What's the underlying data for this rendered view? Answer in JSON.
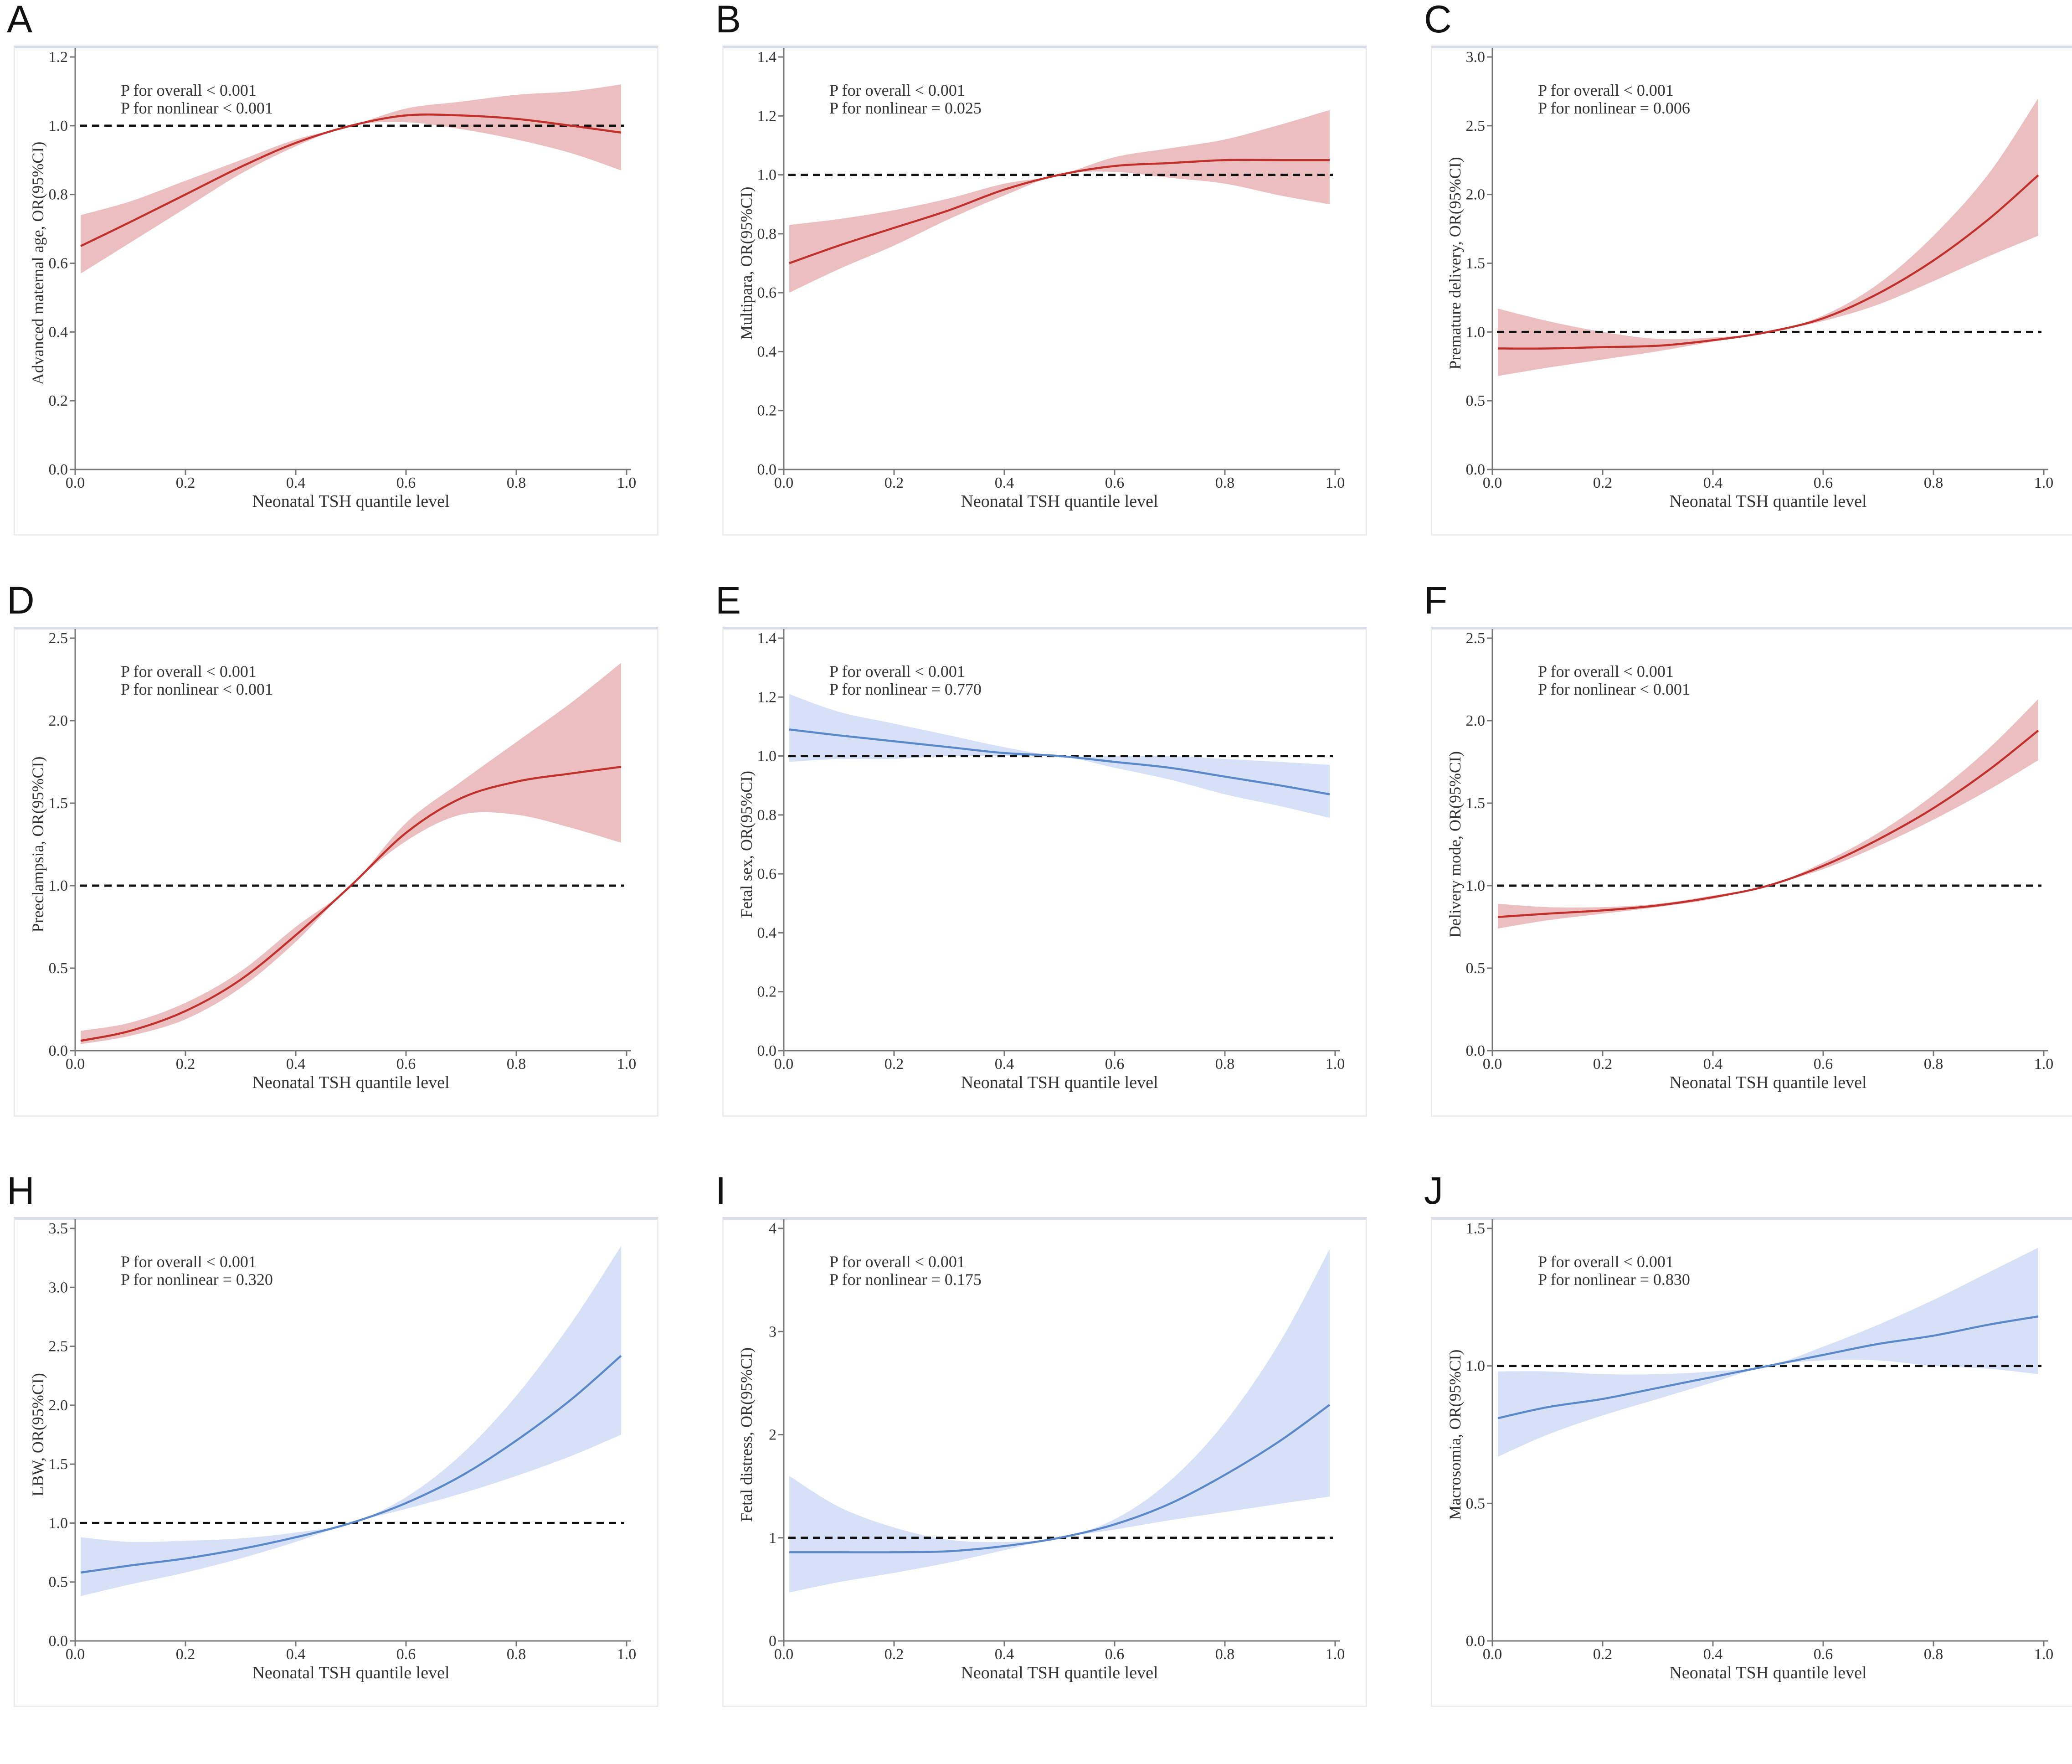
{
  "figure": {
    "colors": {
      "red_line": "#c0302c",
      "red_band": "#e8b4b5",
      "blue_line": "#5b88c8",
      "blue_band": "#cfdcf6",
      "ref_line": "#111111",
      "axis": "#777777"
    }
  },
  "chart_data": [
    {
      "panel": "A",
      "type": "line",
      "theme": "red",
      "xlabel": "Neonatal TSH quantile level",
      "ylabel": "Advanced maternal age, OR(95%CI)",
      "annotations": [
        "P for overall < 0.001",
        "P for nonlinear < 0.001"
      ],
      "xlim": [
        0,
        1
      ],
      "ylim": [
        0,
        1.2
      ],
      "xticks": [
        "0.0",
        "0.2",
        "0.4",
        "0.6",
        "0.8",
        "1.0"
      ],
      "yticks": [
        "0.0",
        "0.2",
        "0.4",
        "0.6",
        "0.8",
        "1.0",
        "1.2"
      ],
      "reference": 1.0,
      "x": [
        0.01,
        0.1,
        0.2,
        0.3,
        0.4,
        0.5,
        0.6,
        0.7,
        0.8,
        0.9,
        0.99
      ],
      "y": [
        0.65,
        0.72,
        0.8,
        0.88,
        0.95,
        1.0,
        1.03,
        1.03,
        1.02,
        1.0,
        0.98
      ],
      "lower": [
        0.57,
        0.66,
        0.76,
        0.86,
        0.94,
        1.0,
        1.01,
        0.99,
        0.96,
        0.92,
        0.87
      ],
      "upper": [
        0.74,
        0.78,
        0.84,
        0.9,
        0.96,
        1.0,
        1.05,
        1.07,
        1.09,
        1.1,
        1.12
      ]
    },
    {
      "panel": "B",
      "type": "line",
      "theme": "red",
      "xlabel": "Neonatal TSH quantile level",
      "ylabel": "Multipara, OR(95%CI)",
      "annotations": [
        "P for overall < 0.001",
        "P for nonlinear = 0.025"
      ],
      "xlim": [
        0,
        1
      ],
      "ylim": [
        0,
        1.4
      ],
      "xticks": [
        "0.0",
        "0.2",
        "0.4",
        "0.6",
        "0.8",
        "1.0"
      ],
      "yticks": [
        "0.0",
        "0.2",
        "0.4",
        "0.6",
        "0.8",
        "1.0",
        "1.2",
        "1.4"
      ],
      "reference": 1.0,
      "x": [
        0.01,
        0.1,
        0.2,
        0.3,
        0.4,
        0.5,
        0.6,
        0.7,
        0.8,
        0.9,
        0.99
      ],
      "y": [
        0.7,
        0.76,
        0.82,
        0.88,
        0.95,
        1.0,
        1.03,
        1.04,
        1.05,
        1.05,
        1.05
      ],
      "lower": [
        0.6,
        0.68,
        0.76,
        0.85,
        0.93,
        1.0,
        1.01,
        0.99,
        0.97,
        0.93,
        0.9
      ],
      "upper": [
        0.83,
        0.85,
        0.88,
        0.92,
        0.97,
        1.0,
        1.06,
        1.09,
        1.12,
        1.17,
        1.22
      ]
    },
    {
      "panel": "C",
      "type": "line",
      "theme": "red",
      "xlabel": "Neonatal TSH quantile level",
      "ylabel": "Premature delivery, OR(95%CI)",
      "annotations": [
        "P for overall < 0.001",
        "P for nonlinear = 0.006"
      ],
      "xlim": [
        0,
        1
      ],
      "ylim": [
        0,
        3.0
      ],
      "xticks": [
        "0.0",
        "0.2",
        "0.4",
        "0.6",
        "0.8",
        "1.0"
      ],
      "yticks": [
        "0.0",
        "0.5",
        "1.0",
        "1.5",
        "2.0",
        "2.5",
        "3.0"
      ],
      "reference": 1.0,
      "x": [
        0.01,
        0.1,
        0.2,
        0.3,
        0.4,
        0.5,
        0.6,
        0.7,
        0.8,
        0.9,
        0.99
      ],
      "y": [
        0.88,
        0.88,
        0.89,
        0.9,
        0.94,
        1.0,
        1.1,
        1.28,
        1.52,
        1.82,
        2.14
      ],
      "lower": [
        0.68,
        0.74,
        0.8,
        0.86,
        0.93,
        1.0,
        1.08,
        1.2,
        1.37,
        1.55,
        1.7
      ],
      "upper": [
        1.17,
        1.08,
        1.0,
        0.95,
        0.96,
        1.0,
        1.12,
        1.35,
        1.7,
        2.15,
        2.7
      ]
    },
    {
      "panel": "D",
      "type": "line",
      "theme": "red",
      "xlabel": "Neonatal TSH quantile level",
      "ylabel": "Preeclampsia, OR(95%CI)",
      "annotations": [
        "P for overall < 0.001",
        "P for nonlinear < 0.001"
      ],
      "xlim": [
        0,
        1
      ],
      "ylim": [
        0,
        2.5
      ],
      "xticks": [
        "0.0",
        "0.2",
        "0.4",
        "0.6",
        "0.8",
        "1.0"
      ],
      "yticks": [
        "0.0",
        "0.5",
        "1.0",
        "1.5",
        "2.0",
        "2.5"
      ],
      "reference": 1.0,
      "x": [
        0.01,
        0.1,
        0.2,
        0.3,
        0.4,
        0.5,
        0.6,
        0.7,
        0.8,
        0.9,
        0.99
      ],
      "y": [
        0.06,
        0.12,
        0.24,
        0.43,
        0.7,
        1.0,
        1.32,
        1.53,
        1.63,
        1.68,
        1.72
      ],
      "lower": [
        0.04,
        0.09,
        0.19,
        0.38,
        0.66,
        1.0,
        1.27,
        1.43,
        1.43,
        1.35,
        1.26
      ],
      "upper": [
        0.12,
        0.17,
        0.29,
        0.48,
        0.75,
        1.0,
        1.38,
        1.63,
        1.87,
        2.11,
        2.35
      ]
    },
    {
      "panel": "E",
      "type": "line",
      "theme": "blue",
      "xlabel": "Neonatal TSH quantile level",
      "ylabel": "Fetal sex, OR(95%CI)",
      "annotations": [
        "P for overall < 0.001",
        "P for nonlinear = 0.770"
      ],
      "xlim": [
        0,
        1
      ],
      "ylim": [
        0,
        1.4
      ],
      "xticks": [
        "0.0",
        "0.2",
        "0.4",
        "0.6",
        "0.8",
        "1.0"
      ],
      "yticks": [
        "0.0",
        "0.2",
        "0.4",
        "0.6",
        "0.8",
        "1.0",
        "1.2",
        "1.4"
      ],
      "reference": 1.0,
      "x": [
        0.01,
        0.1,
        0.2,
        0.3,
        0.4,
        0.5,
        0.6,
        0.7,
        0.8,
        0.9,
        0.99
      ],
      "y": [
        1.09,
        1.07,
        1.05,
        1.03,
        1.01,
        1.0,
        0.98,
        0.96,
        0.93,
        0.9,
        0.87
      ],
      "lower": [
        0.98,
        0.99,
        0.99,
        1.0,
        1.0,
        1.0,
        0.96,
        0.92,
        0.87,
        0.83,
        0.79
      ],
      "upper": [
        1.21,
        1.15,
        1.11,
        1.07,
        1.03,
        1.0,
        1.0,
        1.0,
        0.99,
        0.98,
        0.97
      ]
    },
    {
      "panel": "F",
      "type": "line",
      "theme": "red",
      "xlabel": "Neonatal TSH quantile level",
      "ylabel": "Delivery mode, OR(95%CI)",
      "annotations": [
        "P for overall < 0.001",
        "P for nonlinear < 0.001"
      ],
      "xlim": [
        0,
        1
      ],
      "ylim": [
        0,
        2.5
      ],
      "xticks": [
        "0.0",
        "0.2",
        "0.4",
        "0.6",
        "0.8",
        "1.0"
      ],
      "yticks": [
        "0.0",
        "0.5",
        "1.0",
        "1.5",
        "2.0",
        "2.5"
      ],
      "reference": 1.0,
      "x": [
        0.01,
        0.1,
        0.2,
        0.3,
        0.4,
        0.5,
        0.6,
        0.7,
        0.8,
        0.9,
        0.99
      ],
      "y": [
        0.81,
        0.83,
        0.85,
        0.88,
        0.93,
        1.0,
        1.12,
        1.28,
        1.47,
        1.7,
        1.94
      ],
      "lower": [
        0.74,
        0.79,
        0.83,
        0.87,
        0.92,
        1.0,
        1.1,
        1.24,
        1.4,
        1.58,
        1.76
      ],
      "upper": [
        0.89,
        0.87,
        0.87,
        0.89,
        0.94,
        1.0,
        1.14,
        1.32,
        1.55,
        1.83,
        2.13
      ]
    },
    {
      "panel": "H",
      "type": "line",
      "theme": "blue",
      "xlabel": "Neonatal TSH quantile level",
      "ylabel": "LBW, OR(95%CI)",
      "annotations": [
        "P for overall < 0.001",
        "P for nonlinear = 0.320"
      ],
      "xlim": [
        0,
        1
      ],
      "ylim": [
        0,
        3.5
      ],
      "xticks": [
        "0.0",
        "0.2",
        "0.4",
        "0.6",
        "0.8",
        "1.0"
      ],
      "yticks": [
        "0.0",
        "0.5",
        "1.0",
        "1.5",
        "2.0",
        "2.5",
        "3.0",
        "3.5"
      ],
      "reference": 1.0,
      "x": [
        0.01,
        0.1,
        0.2,
        0.3,
        0.4,
        0.5,
        0.6,
        0.7,
        0.8,
        0.9,
        0.99
      ],
      "y": [
        0.58,
        0.64,
        0.7,
        0.78,
        0.88,
        1.0,
        1.17,
        1.4,
        1.7,
        2.05,
        2.42
      ],
      "lower": [
        0.38,
        0.48,
        0.58,
        0.7,
        0.84,
        1.0,
        1.12,
        1.25,
        1.4,
        1.57,
        1.75
      ],
      "upper": [
        0.88,
        0.84,
        0.85,
        0.87,
        0.92,
        1.0,
        1.22,
        1.58,
        2.08,
        2.7,
        3.35
      ]
    },
    {
      "panel": "I",
      "type": "line",
      "theme": "blue",
      "xlabel": "Neonatal TSH quantile level",
      "ylabel": "Fetal distress, OR(95%CI)",
      "annotations": [
        "P for overall < 0.001",
        "P for nonlinear = 0.175"
      ],
      "xlim": [
        0,
        1
      ],
      "ylim": [
        0,
        4
      ],
      "xticks": [
        "0.0",
        "0.2",
        "0.4",
        "0.6",
        "0.8",
        "1.0"
      ],
      "yticks": [
        "0",
        "1",
        "2",
        "3",
        "4"
      ],
      "reference": 1.0,
      "x": [
        0.01,
        0.1,
        0.2,
        0.3,
        0.4,
        0.5,
        0.6,
        0.7,
        0.8,
        0.9,
        0.99
      ],
      "y": [
        0.86,
        0.86,
        0.86,
        0.87,
        0.92,
        1.0,
        1.13,
        1.33,
        1.61,
        1.94,
        2.29
      ],
      "lower": [
        0.47,
        0.57,
        0.66,
        0.76,
        0.88,
        1.0,
        1.08,
        1.17,
        1.25,
        1.33,
        1.4
      ],
      "upper": [
        1.6,
        1.3,
        1.1,
        0.98,
        0.96,
        1.0,
        1.18,
        1.55,
        2.12,
        2.9,
        3.8
      ]
    },
    {
      "panel": "J",
      "type": "line",
      "theme": "blue",
      "xlabel": "Neonatal TSH quantile level",
      "ylabel": "Macrosomia, OR(95%CI)",
      "annotations": [
        "P for overall < 0.001",
        "P for nonlinear = 0.830"
      ],
      "xlim": [
        0,
        1
      ],
      "ylim": [
        0,
        1.5
      ],
      "xticks": [
        "0.0",
        "0.2",
        "0.4",
        "0.6",
        "0.8",
        "1.0"
      ],
      "yticks": [
        "0.0",
        "0.5",
        "1.0",
        "1.5"
      ],
      "reference": 1.0,
      "x": [
        0.01,
        0.1,
        0.2,
        0.3,
        0.4,
        0.5,
        0.6,
        0.7,
        0.8,
        0.9,
        0.99
      ],
      "y": [
        0.81,
        0.85,
        0.88,
        0.92,
        0.96,
        1.0,
        1.04,
        1.08,
        1.11,
        1.15,
        1.18
      ],
      "lower": [
        0.67,
        0.75,
        0.82,
        0.88,
        0.94,
        1.0,
        1.02,
        1.02,
        1.0,
        0.99,
        0.97
      ],
      "upper": [
        0.98,
        0.98,
        0.97,
        0.97,
        0.98,
        1.0,
        1.07,
        1.15,
        1.24,
        1.34,
        1.43
      ]
    }
  ]
}
